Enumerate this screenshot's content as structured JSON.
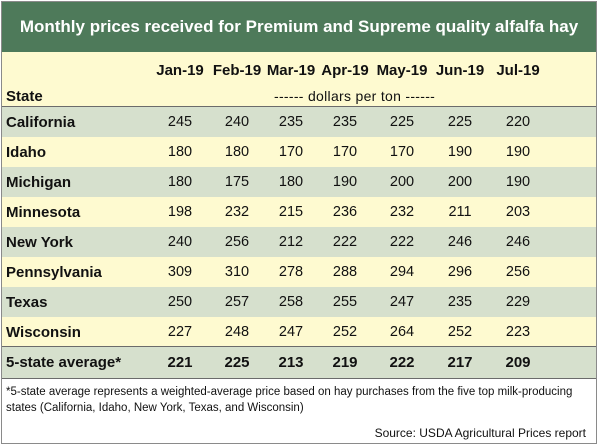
{
  "title": "Monthly prices received for Premium and Supreme quality alfalfa hay",
  "header": {
    "state_label": "State",
    "unit_label": "------ dollars per ton ------",
    "months": [
      "Jan-19",
      "Feb-19",
      "Mar-19",
      "Apr-19",
      "May-19",
      "Jun-19",
      "Jul-19"
    ]
  },
  "rows": [
    {
      "state": "California",
      "values": [
        "245",
        "240",
        "235",
        "235",
        "225",
        "225",
        "220"
      ]
    },
    {
      "state": "Idaho",
      "values": [
        "180",
        "180",
        "170",
        "170",
        "170",
        "190",
        "190"
      ]
    },
    {
      "state": "Michigan",
      "values": [
        "180",
        "175",
        "180",
        "190",
        "200",
        "200",
        "190"
      ]
    },
    {
      "state": "Minnesota",
      "values": [
        "198",
        "232",
        "215",
        "236",
        "232",
        "211",
        "203"
      ]
    },
    {
      "state": "New York",
      "values": [
        "240",
        "256",
        "212",
        "222",
        "222",
        "246",
        "246"
      ]
    },
    {
      "state": "Pennsylvania",
      "values": [
        "309",
        "310",
        "278",
        "288",
        "294",
        "296",
        "256"
      ]
    },
    {
      "state": "Texas",
      "values": [
        "250",
        "257",
        "258",
        "255",
        "247",
        "235",
        "229"
      ]
    },
    {
      "state": "Wisconsin",
      "values": [
        "227",
        "248",
        "247",
        "252",
        "264",
        "252",
        "223"
      ]
    }
  ],
  "average": {
    "state": "5-state average*",
    "values": [
      "221",
      "225",
      "213",
      "219",
      "222",
      "217",
      "209"
    ]
  },
  "footnote": "*5-state average represents  a weighted-average price based on hay purchases from the five top milk-producing states (California, Idaho, New York, Texas, and Wisconsin)",
  "source": "Source: USDA Agricultural Prices report",
  "colors": {
    "title_bg": "#4e7a5a",
    "light_row": "#fefad0",
    "dark_row": "#d6e0cd"
  }
}
